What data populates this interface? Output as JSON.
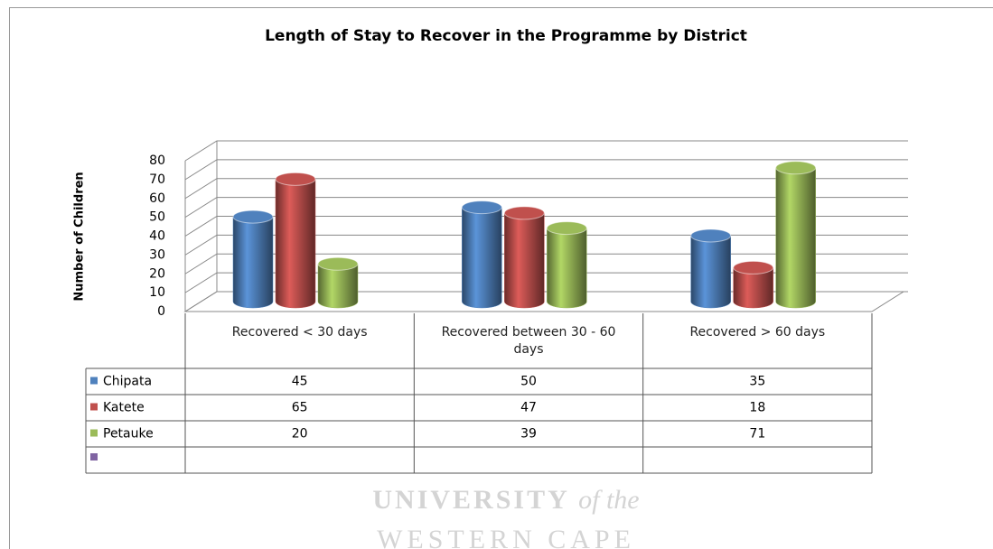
{
  "chart_data": {
    "type": "bar3d",
    "title": "Length of Stay to Recover in the Programme by District",
    "y_label": "Number of Children",
    "categories": [
      "Recovered < 30 days",
      "Recovered between 30 - 60 days",
      "Recovered > 60 days"
    ],
    "series": [
      {
        "name": "Chipata",
        "color": "#4f81bd",
        "values": [
          45,
          50,
          35
        ]
      },
      {
        "name": "Katete",
        "color": "#c0504d",
        "values": [
          65,
          47,
          18
        ]
      },
      {
        "name": "Petauke",
        "color": "#9bbb59",
        "values": [
          20,
          39,
          71
        ]
      }
    ],
    "ylim": [
      0,
      80
    ],
    "yticks": [
      0,
      10,
      20,
      30,
      40,
      50,
      60,
      70,
      80
    ],
    "grid": true,
    "watermark": {
      "line1": "UNIVERSITY",
      "line1_suffix": "of the",
      "line2": "WESTERN CAPE"
    }
  }
}
